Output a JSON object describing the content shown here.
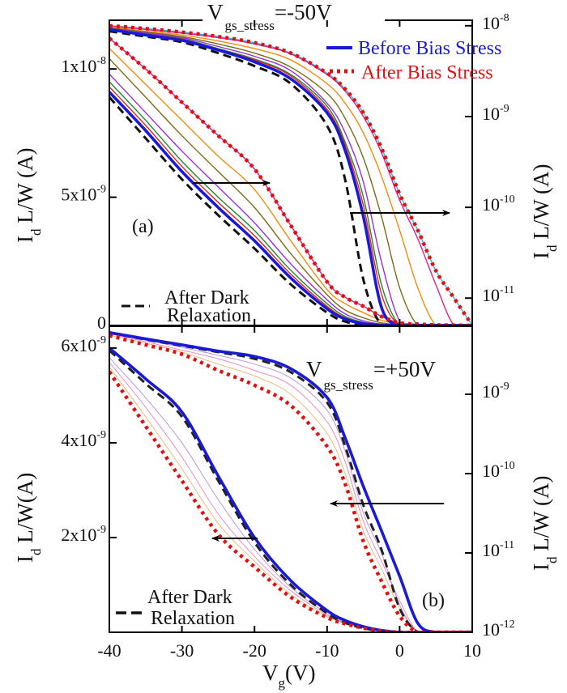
{
  "figure": {
    "x_label": {
      "main": "V",
      "sub": "g",
      "rest": "(V)"
    },
    "x_ticks": [
      "-40",
      "-30",
      "-20",
      "-10",
      "0",
      "10"
    ],
    "legend": {
      "before": {
        "label": "Before Bias Stress",
        "color": "#1a1ad6"
      },
      "after": {
        "label": "After Bias Stress",
        "color": "#e01010"
      }
    }
  },
  "chart_data": [
    {
      "panel_label": "(a)",
      "type": "line",
      "title": {
        "main": "V",
        "sub": "gs_stress",
        "rest": "=-50V"
      },
      "xlim": [
        -40,
        10
      ],
      "left_axis": {
        "label": {
          "main": "I",
          "sub": "d",
          "rest": " L/W (A)"
        },
        "scale": "linear",
        "ylim": [
          0,
          1.19e-08
        ],
        "ticks": [
          {
            "value": 0,
            "base": "0",
            "exp": ""
          },
          {
            "value": 5e-09,
            "base": "5x10",
            "exp": "-9"
          },
          {
            "value": 1e-08,
            "base": "1x10",
            "exp": "-8"
          }
        ]
      },
      "right_axis": {
        "label": {
          "main": "I",
          "sub": "d",
          "rest": " L/W (A)"
        },
        "scale": "log",
        "ylim": [
          5e-12,
          1.15e-08
        ],
        "ticks": [
          {
            "value": 1e-08,
            "base": "10",
            "exp": "-8"
          },
          {
            "value": 1e-09,
            "base": "10",
            "exp": "-9"
          },
          {
            "value": 1e-10,
            "base": "10",
            "exp": "-10"
          },
          {
            "value": 1e-11,
            "base": "10",
            "exp": "-11"
          }
        ]
      },
      "dark_legend": {
        "line1": "After Dark",
        "line2": "Relaxation"
      },
      "x": [
        -40,
        -35,
        -30,
        -25,
        -20,
        -15,
        -10,
        -7.5,
        -5,
        -2.5,
        0,
        2.5,
        5,
        7.5,
        10
      ],
      "series": [
        {
          "axis": "right",
          "color": "#30b8e8",
          "style": "thin",
          "values": [
            1e-08,
            9.3e-09,
            8.5e-09,
            7.6e-09,
            6.5e-09,
            5e-09,
            3e-09,
            2e-09,
            1.1e-09,
            4.5e-10,
            1.4e-10,
            5.6e-11,
            2e-11,
            1e-11,
            5e-12
          ]
        },
        {
          "axis": "right",
          "color": "#e0208a",
          "style": "thin",
          "values": [
            1e-08,
            9.1e-09,
            8.3e-09,
            7.4e-09,
            6.3e-09,
            4.9e-09,
            2.9e-09,
            1.9e-09,
            1e-09,
            4e-10,
            1.2e-10,
            4.5e-11,
            1.4e-11,
            5e-12,
            5e-12
          ]
        },
        {
          "axis": "right",
          "color": "#f08c10",
          "style": "thin",
          "values": [
            9.8e-09,
            8.7e-09,
            7.9e-09,
            6.8e-09,
            5.6e-09,
            4.2e-09,
            2.3e-09,
            1.4e-09,
            6.6e-10,
            2.2e-10,
            5.6e-11,
            1.3e-11,
            5e-12,
            5e-12,
            5e-12
          ]
        },
        {
          "axis": "right",
          "color": "#7a6a18",
          "style": "thin",
          "values": [
            9.5e-09,
            8.5e-09,
            7.6e-09,
            6.3e-09,
            5e-09,
            3.5e-09,
            1.8e-09,
            9.5e-10,
            3.5e-10,
            7.9e-11,
            1.3e-11,
            5e-12,
            5e-12,
            5e-12,
            5e-12
          ]
        },
        {
          "axis": "right",
          "color": "#9a30d8",
          "style": "thin",
          "values": [
            9.3e-09,
            8.3e-09,
            7.4e-09,
            5.9e-09,
            4.6e-09,
            3.2e-09,
            1.4e-09,
            6.6e-10,
            1.9e-10,
            2.5e-11,
            5.6e-12,
            5e-12,
            5e-12,
            5e-12,
            5e-12
          ]
        },
        {
          "axis": "right",
          "color": "#1e8a2a",
          "style": "thin",
          "values": [
            9.3e-09,
            8.1e-09,
            7.2e-09,
            5.6e-09,
            4.3e-09,
            2.9e-09,
            1.3e-09,
            5.2e-10,
            1.3e-10,
            1.4e-11,
            5e-12,
            5e-12,
            5e-12,
            5e-12,
            5e-12
          ]
        },
        {
          "axis": "right",
          "color": "#e82020",
          "style": "thin",
          "values": [
            9.1e-09,
            8.1e-09,
            7.1e-09,
            5.5e-09,
            4.2e-09,
            2.8e-09,
            1.2e-09,
            4.8e-10,
            1.05e-10,
            1.1e-11,
            5e-12,
            5e-12,
            5e-12,
            5e-12,
            5e-12
          ]
        },
        {
          "axis": "left",
          "color": "#30b8e8",
          "style": "thin",
          "values": [
            1.12e-08,
            1e-08,
            8.7e-09,
            7.4e-09,
            6.1e-09,
            3.9e-09,
            1.7e-09,
            1.1e-09,
            7.5e-10,
            3.5e-10,
            1e-10,
            5e-11,
            2e-11,
            1e-11,
            0
          ]
        },
        {
          "axis": "left",
          "color": "#e0208a",
          "style": "thin",
          "values": [
            1.12e-08,
            1e-08,
            8.7e-09,
            7.4e-09,
            6.1e-09,
            3.9e-09,
            1.7e-09,
            1.1e-09,
            7.5e-10,
            3.5e-10,
            1e-10,
            5e-11,
            2e-11,
            1e-11,
            0
          ]
        },
        {
          "axis": "left",
          "color": "#f08c10",
          "style": "thin",
          "values": [
            1.08e-08,
            9.4e-09,
            8e-09,
            6.6e-09,
            5.3e-09,
            3.3e-09,
            1.4e-09,
            8.5e-10,
            5e-10,
            2e-10,
            8e-11,
            3e-11,
            1e-11,
            0,
            0
          ]
        },
        {
          "axis": "left",
          "color": "#7a6a18",
          "style": "thin",
          "values": [
            1.04e-08,
            8.9e-09,
            7.4e-09,
            6e-09,
            4.6e-09,
            2.8e-09,
            1.2e-09,
            6e-10,
            3e-10,
            1e-10,
            3e-11,
            0,
            0,
            0,
            0
          ]
        },
        {
          "axis": "left",
          "color": "#9a30d8",
          "style": "thin",
          "values": [
            9.8e-09,
            8.3e-09,
            6.8e-09,
            5.4e-09,
            4e-09,
            2.4e-09,
            1e-09,
            4.5e-10,
            1.8e-10,
            5e-11,
            1e-11,
            0,
            0,
            0,
            0
          ]
        },
        {
          "axis": "left",
          "color": "#1e8a2a",
          "style": "thin",
          "values": [
            9.5e-09,
            8e-09,
            6.4e-09,
            5e-09,
            3.7e-09,
            2.15e-09,
            8.5e-10,
            3.5e-10,
            1.2e-10,
            3e-11,
            0,
            0,
            0,
            0,
            0
          ]
        },
        {
          "axis": "left",
          "color": "#e82020",
          "style": "thin",
          "values": [
            9.3e-09,
            7.8e-09,
            6.2e-09,
            4.8e-09,
            3.5e-09,
            2e-09,
            7.5e-10,
            3e-10,
            9e-11,
            2e-11,
            0,
            0,
            0,
            0,
            0
          ]
        },
        {
          "name": "After Dark Relaxation",
          "axis": "right",
          "color": "#111111",
          "style": "dashed",
          "values": [
            8.7e-09,
            7.6e-09,
            6.6e-09,
            5e-09,
            3.6e-09,
            2.3e-09,
            7.9e-10,
            2e-10,
            1.6e-11,
            5e-12,
            5e-12,
            5e-12,
            5e-12,
            5e-12,
            5e-12
          ]
        },
        {
          "name": "After Dark Relaxation",
          "axis": "left",
          "color": "#111111",
          "style": "dashed",
          "values": [
            8.9e-09,
            7.3e-09,
            5.7e-09,
            4.3e-09,
            3e-09,
            1.6e-09,
            5e-10,
            1.5e-10,
            3e-11,
            0,
            0,
            0,
            0,
            0,
            0
          ]
        },
        {
          "name": "Before Bias Stress",
          "axis": "right",
          "color": "#1a1ad6",
          "style": "thick",
          "values": [
            9.1e-09,
            7.9e-09,
            6.9e-09,
            5.4e-09,
            4e-09,
            2.6e-09,
            1.1e-09,
            4.2e-10,
            7.9e-11,
            7.9e-12,
            5e-12,
            5e-12,
            5e-12,
            5e-12,
            5e-12
          ]
        },
        {
          "name": "Before Bias Stress",
          "axis": "left",
          "color": "#1a1ad6",
          "style": "thick",
          "values": [
            9.1e-09,
            7.6e-09,
            6e-09,
            4.6e-09,
            3.3e-09,
            1.85e-09,
            6.5e-10,
            2.5e-10,
            7e-11,
            1e-11,
            0,
            0,
            0,
            0,
            0
          ]
        },
        {
          "name": "After Bias Stress",
          "axis": "right",
          "color": "#e01010",
          "style": "dotted",
          "values": [
            1e-08,
            9.3e-09,
            8.5e-09,
            7.6e-09,
            6.5e-09,
            5e-09,
            3e-09,
            2e-09,
            1.1e-09,
            4.5e-10,
            1.4e-10,
            5.6e-11,
            2e-11,
            1e-11,
            5e-12
          ]
        },
        {
          "name": "After Bias Stress",
          "axis": "left",
          "color": "#e01010",
          "style": "dotted",
          "values": [
            1.12e-08,
            1e-08,
            8.7e-09,
            7.4e-09,
            6.1e-09,
            3.9e-09,
            1.7e-09,
            1.1e-09,
            7.5e-10,
            3.5e-10,
            1e-10,
            5e-11,
            2e-11,
            1e-11,
            0
          ]
        }
      ]
    },
    {
      "panel_label": "(b)",
      "type": "line",
      "title": {
        "main": "V",
        "sub": "gs_stress",
        "rest": "=+50V"
      },
      "xlim": [
        -40,
        10
      ],
      "left_axis": {
        "label": {
          "main": "I",
          "sub": "d",
          "rest": " L/W(A)"
        },
        "scale": "linear",
        "ylim": [
          0,
          6.46e-09
        ],
        "ticks": [
          {
            "value": 2e-09,
            "base": "2x10",
            "exp": "-9"
          },
          {
            "value": 4e-09,
            "base": "4x10",
            "exp": "-9"
          },
          {
            "value": 6e-09,
            "base": "6x10",
            "exp": "-9"
          }
        ]
      },
      "right_axis": {
        "label": {
          "main": "I",
          "sub": "d",
          "rest": " L/W (A)"
        },
        "scale": "log",
        "ylim": [
          1e-12,
          7.2e-09
        ],
        "ticks": [
          {
            "value": 1e-09,
            "base": "10",
            "exp": "-9"
          },
          {
            "value": 1e-10,
            "base": "10",
            "exp": "-10"
          },
          {
            "value": 1e-11,
            "base": "10",
            "exp": "-11"
          },
          {
            "value": 1e-12,
            "base": "10",
            "exp": "-12"
          }
        ]
      },
      "dark_legend": {
        "line1": "After Dark",
        "line2": "Relaxation"
      },
      "x": [
        -40,
        -35,
        -30,
        -25,
        -20,
        -15,
        -10,
        -7.5,
        -5,
        -2.5,
        0,
        2.5,
        5,
        7.5,
        10
      ],
      "series": [
        {
          "axis": "right",
          "color": "#f0a040",
          "style": "faint",
          "values": [
            5.6e-09,
            4.4e-09,
            3.4e-09,
            2.4e-09,
            1.7e-09,
            1e-09,
            3.2e-10,
            1e-10,
            1.9e-11,
            6.3e-12,
            2e-12,
            1e-12,
            1e-12,
            1e-12,
            1e-12
          ]
        },
        {
          "axis": "right",
          "color": "#e060b0",
          "style": "faint",
          "values": [
            5.8e-09,
            4.6e-09,
            3.6e-09,
            2.8e-09,
            2e-09,
            1.3e-09,
            4.5e-10,
            1.4e-10,
            2.5e-11,
            7.9e-12,
            2.5e-12,
            1e-12,
            1e-12,
            1e-12,
            1e-12
          ]
        },
        {
          "axis": "right",
          "color": "#a070e0",
          "style": "faint",
          "values": [
            5.9e-09,
            4.8e-09,
            3.9e-09,
            3.1e-09,
            2.4e-09,
            1.6e-09,
            6.3e-10,
            1.9e-10,
            3.2e-11,
            1e-11,
            2.2e-12,
            1e-12,
            1e-12,
            1e-12,
            1e-12
          ]
        },
        {
          "axis": "left",
          "color": "#f0a040",
          "style": "faint",
          "values": [
            5.6e-09,
            4.55e-09,
            3.45e-09,
            2.3e-09,
            1.5e-09,
            8e-10,
            3.3e-10,
            1.9e-10,
            9e-11,
            3e-11,
            0,
            0,
            0,
            0,
            0
          ]
        },
        {
          "axis": "left",
          "color": "#e060b0",
          "style": "faint",
          "values": [
            5.7e-09,
            4.75e-09,
            3.7e-09,
            2.5e-09,
            1.6e-09,
            8.8e-10,
            3.6e-10,
            2e-10,
            1e-10,
            3e-11,
            0,
            0,
            0,
            0,
            0
          ]
        },
        {
          "axis": "left",
          "color": "#a070e0",
          "style": "faint",
          "values": [
            5.8e-09,
            4.95e-09,
            4e-09,
            2.8e-09,
            1.75e-09,
            9.5e-10,
            3.9e-10,
            2.1e-10,
            1e-10,
            3e-11,
            0,
            0,
            0,
            0,
            0
          ]
        },
        {
          "name": "After Dark Relaxation",
          "axis": "right",
          "color": "#222222",
          "style": "dashed",
          "values": [
            6e-09,
            4.9e-09,
            4.1e-09,
            3.4e-09,
            2.8e-09,
            1.9e-09,
            7.9e-10,
            2.2e-10,
            4e-11,
            1.1e-11,
            2e-12,
            1e-12,
            1e-12,
            1e-12,
            1e-12
          ]
        },
        {
          "name": "After Dark Relaxation",
          "axis": "left",
          "color": "#222222",
          "style": "dashed",
          "values": [
            5.95e-09,
            5.25e-09,
            4.55e-09,
            3.2e-09,
            1.9e-09,
            1e-09,
            4e-10,
            2e-10,
            9e-11,
            2e-11,
            0,
            0,
            0,
            0,
            0
          ]
        },
        {
          "name": "Before Bias Stress",
          "axis": "right",
          "color": "#1a1ad6",
          "style": "thick",
          "values": [
            6e-09,
            5e-09,
            4.2e-09,
            3.5e-09,
            3e-09,
            2.1e-09,
            9.1e-10,
            2.8e-10,
            6.9e-11,
            1.9e-11,
            5.1e-12,
            1.3e-12,
            1e-12,
            1e-12,
            1e-12
          ]
        },
        {
          "name": "Before Bias Stress",
          "axis": "left",
          "color": "#1a1ad6",
          "style": "thick",
          "values": [
            6e-09,
            5.35e-09,
            4.65e-09,
            3.3e-09,
            2e-09,
            1.09e-09,
            4.6e-10,
            2.5e-10,
            1.2e-10,
            4e-11,
            0,
            0,
            0,
            0,
            0
          ]
        },
        {
          "name": "After Bias Stress",
          "axis": "right",
          "color": "#e01010",
          "style": "dotted",
          "values": [
            5.5e-09,
            4.2e-09,
            3.2e-09,
            2e-09,
            1.3e-09,
            7.2e-10,
            2.2e-10,
            7.4e-11,
            1.4e-11,
            4.4e-12,
            1.6e-12,
            1e-12,
            1e-12,
            1e-12,
            1e-12
          ]
        },
        {
          "name": "After Bias Stress",
          "axis": "left",
          "color": "#e01010",
          "style": "dotted",
          "values": [
            5.5e-09,
            4.35e-09,
            3.2e-09,
            2.07e-09,
            1.38e-09,
            7.4e-10,
            3.1e-10,
            1.8e-10,
            9e-11,
            3e-11,
            0,
            0,
            0,
            0,
            0
          ]
        }
      ]
    }
  ]
}
